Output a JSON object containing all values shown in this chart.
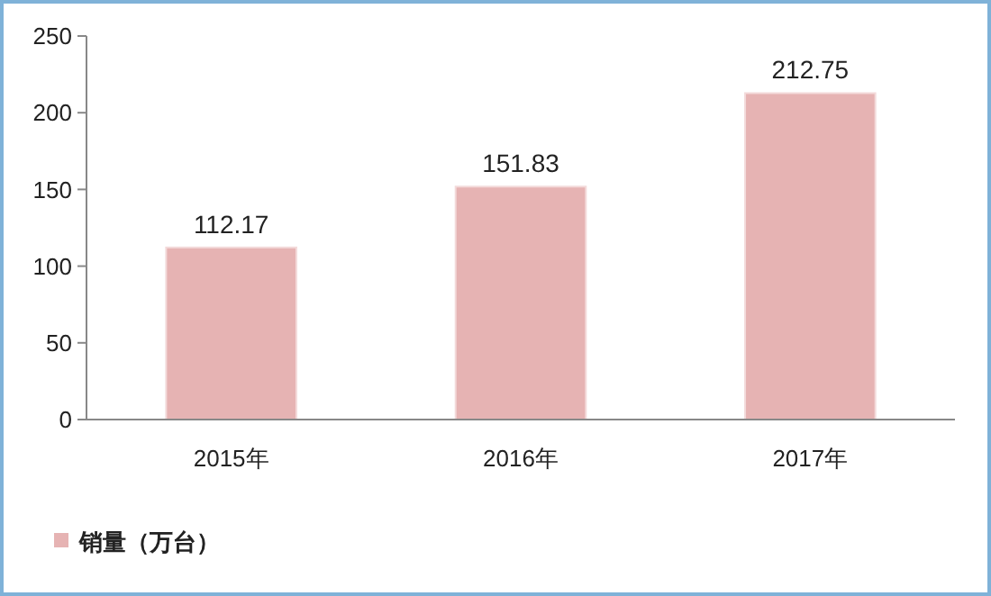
{
  "chart_data": {
    "type": "bar",
    "categories": [
      "2015年",
      "2016年",
      "2017年"
    ],
    "series": [
      {
        "name": "销量（万台）",
        "color": "#e6b3b3",
        "values": [
          112.17,
          151.83,
          212.75
        ]
      }
    ],
    "ylim": [
      0,
      250
    ],
    "yticks": [
      0,
      50,
      100,
      150,
      200,
      250
    ],
    "data_labels": true,
    "legend": "bottom left"
  }
}
